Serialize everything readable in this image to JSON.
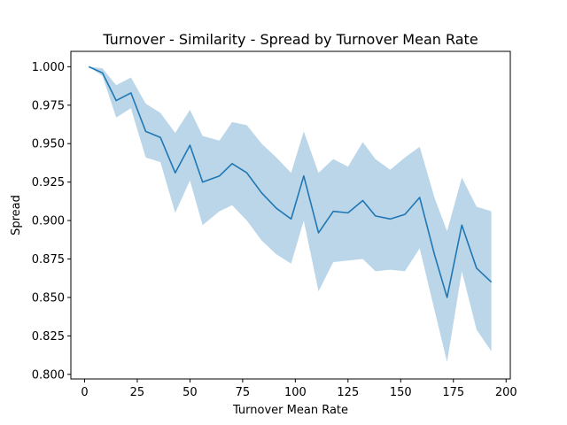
{
  "chart_data": {
    "type": "line",
    "title": "Turnover - Similarity - Spread by Turnover Mean Rate",
    "xlabel": "Turnover Mean Rate",
    "ylabel": "Spread",
    "xlim": [
      -6.5,
      202
    ],
    "ylim": [
      0.797,
      1.01
    ],
    "xticks": [
      0,
      25,
      50,
      75,
      100,
      125,
      150,
      175,
      200
    ],
    "xtick_labels": [
      "0",
      "25",
      "50",
      "75",
      "100",
      "125",
      "150",
      "175",
      "200"
    ],
    "yticks": [
      0.8,
      0.825,
      0.85,
      0.875,
      0.9,
      0.925,
      0.95,
      0.975,
      1.0
    ],
    "ytick_labels": [
      "0.800",
      "0.825",
      "0.850",
      "0.875",
      "0.900",
      "0.925",
      "0.950",
      "0.975",
      "1.000"
    ],
    "grid": false,
    "series": [
      {
        "color": "#1f77b4",
        "band_color": "#1f77b4",
        "x": [
          2,
          8.5,
          15,
          22,
          29,
          36,
          43,
          50,
          56,
          64,
          70,
          77,
          84,
          91,
          98,
          104,
          111,
          118,
          125,
          132,
          138,
          145,
          152,
          159,
          166,
          172,
          179,
          186,
          193
        ],
        "y": [
          1.0,
          0.996,
          0.978,
          0.983,
          0.958,
          0.954,
          0.931,
          0.949,
          0.925,
          0.929,
          0.937,
          0.931,
          0.918,
          0.908,
          0.901,
          0.929,
          0.892,
          0.906,
          0.905,
          0.913,
          0.903,
          0.901,
          0.904,
          0.915,
          0.878,
          0.85,
          0.897,
          0.869,
          0.86
        ],
        "lower": [
          1.0,
          0.994,
          0.967,
          0.973,
          0.941,
          0.938,
          0.905,
          0.926,
          0.897,
          0.906,
          0.91,
          0.9,
          0.887,
          0.878,
          0.872,
          0.9,
          0.854,
          0.873,
          0.874,
          0.875,
          0.867,
          0.868,
          0.867,
          0.882,
          0.842,
          0.808,
          0.867,
          0.829,
          0.815
        ],
        "upper": [
          1.0,
          0.999,
          0.988,
          0.993,
          0.976,
          0.97,
          0.957,
          0.972,
          0.955,
          0.952,
          0.964,
          0.962,
          0.95,
          0.941,
          0.931,
          0.958,
          0.931,
          0.94,
          0.935,
          0.951,
          0.94,
          0.933,
          0.941,
          0.948,
          0.915,
          0.893,
          0.928,
          0.909,
          0.906
        ]
      }
    ]
  }
}
